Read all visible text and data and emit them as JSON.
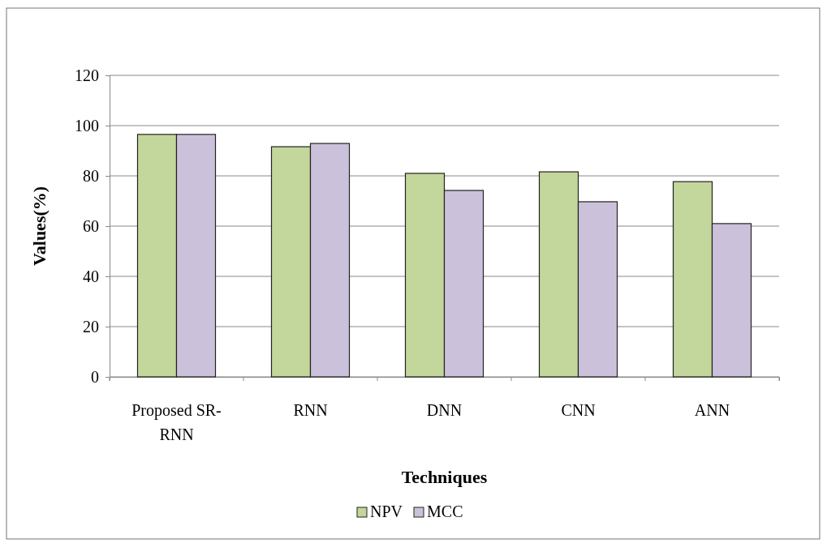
{
  "chart_data": {
    "type": "bar",
    "xlabel": "Techniques",
    "ylabel": "Values(%)",
    "categories": [
      "Proposed SR-RNN",
      "RNN",
      "DNN",
      "CNN",
      "ANN"
    ],
    "series": [
      {
        "name": "NPV",
        "color": "#c3d69b",
        "values": [
          96.5,
          91.6,
          81,
          81.6,
          77.7
        ]
      },
      {
        "name": "MCC",
        "color": "#ccc1da",
        "values": [
          96.5,
          92.9,
          74.2,
          69.7,
          61
        ]
      }
    ],
    "ylim": [
      0,
      120
    ],
    "yticks": [
      0,
      20,
      40,
      60,
      80,
      100,
      120
    ],
    "grid": "y",
    "legend": "bottom"
  }
}
